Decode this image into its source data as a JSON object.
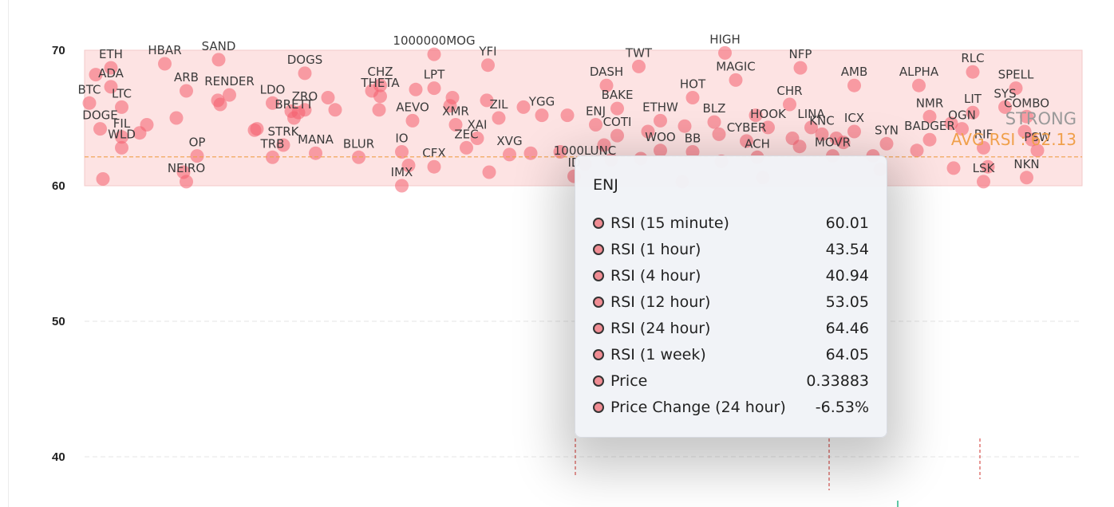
{
  "chart_data": {
    "type": "scatter",
    "ylim": [
      35,
      72
    ],
    "y_ticks": [
      40,
      50,
      60,
      70
    ],
    "grid": true,
    "zone": {
      "label": "STRONG",
      "from": 60,
      "to": 70
    },
    "average": {
      "label": "AVG RSI : 62.13",
      "value": 62.13
    },
    "labeled_points": [
      {
        "name": "ETH",
        "x": 2,
        "y": 68.7
      },
      {
        "name": "HBAR",
        "x": 7,
        "y": 69.0
      },
      {
        "name": "SAND",
        "x": 12,
        "y": 69.3
      },
      {
        "name": "ADA",
        "x": 2,
        "y": 67.3
      },
      {
        "name": "ARB",
        "x": 9,
        "y": 67.0
      },
      {
        "name": "RENDER",
        "x": 13,
        "y": 66.7
      },
      {
        "name": "DOGS",
        "x": 20,
        "y": 68.3
      },
      {
        "name": "1000000MOG",
        "x": 32,
        "y": 69.7
      },
      {
        "name": "YFI",
        "x": 37,
        "y": 68.9
      },
      {
        "name": "CHZ",
        "x": 27,
        "y": 67.4
      },
      {
        "name": "THETA",
        "x": 27,
        "y": 66.6
      },
      {
        "name": "LPT",
        "x": 32,
        "y": 67.2
      },
      {
        "name": "BTC",
        "x": 0,
        "y": 66.1
      },
      {
        "name": "LTC",
        "x": 3,
        "y": 65.8
      },
      {
        "name": "LDO",
        "x": 17,
        "y": 66.1
      },
      {
        "name": "ZRO",
        "x": 20,
        "y": 65.6
      },
      {
        "name": "BRETT",
        "x": 19,
        "y": 65.0
      },
      {
        "name": "AEVO",
        "x": 30,
        "y": 64.8
      },
      {
        "name": "XMR",
        "x": 34,
        "y": 64.5
      },
      {
        "name": "ZIL",
        "x": 38,
        "y": 65.0
      },
      {
        "name": "YGG",
        "x": 42,
        "y": 65.2
      },
      {
        "name": "DOGE",
        "x": 1,
        "y": 64.2
      },
      {
        "name": "FIL",
        "x": 3,
        "y": 63.6
      },
      {
        "name": "STRK",
        "x": 18,
        "y": 63.0
      },
      {
        "name": "XAI",
        "x": 36,
        "y": 63.5
      },
      {
        "name": "XVG",
        "x": 39,
        "y": 62.3
      },
      {
        "name": "WLD",
        "x": 3,
        "y": 62.8
      },
      {
        "name": "OP",
        "x": 10,
        "y": 62.2
      },
      {
        "name": "MANA",
        "x": 21,
        "y": 62.4
      },
      {
        "name": "TRB",
        "x": 17,
        "y": 62.1
      },
      {
        "name": "BLUR",
        "x": 25,
        "y": 62.1
      },
      {
        "name": "IO",
        "x": 29,
        "y": 62.5
      },
      {
        "name": "CFX",
        "x": 32,
        "y": 61.4
      },
      {
        "name": "ZEC",
        "x": 35,
        "y": 62.8
      },
      {
        "name": "NEIRO",
        "x": 9,
        "y": 60.3
      },
      {
        "name": "IMX",
        "x": 29,
        "y": 60.0
      },
      {
        "name": "TWT",
        "x": 51,
        "y": 68.8
      },
      {
        "name": "HIGH",
        "x": 59,
        "y": 69.8
      },
      {
        "name": "NFP",
        "x": 66,
        "y": 68.7
      },
      {
        "name": "DASH",
        "x": 48,
        "y": 67.4
      },
      {
        "name": "MAGIC",
        "x": 60,
        "y": 67.8
      },
      {
        "name": "HOT",
        "x": 56,
        "y": 66.5
      },
      {
        "name": "BAKE",
        "x": 49,
        "y": 65.7
      },
      {
        "name": "CHR",
        "x": 65,
        "y": 66.0
      },
      {
        "name": "AMB",
        "x": 71,
        "y": 67.4
      },
      {
        "name": "ALPHA",
        "x": 77,
        "y": 67.4
      },
      {
        "name": "RLC",
        "x": 82,
        "y": 68.4
      },
      {
        "name": "SPELL",
        "x": 86,
        "y": 67.2
      },
      {
        "name": "ENJ",
        "x": 47,
        "y": 64.5
      },
      {
        "name": "ETHW",
        "x": 53,
        "y": 64.8
      },
      {
        "name": "BLZ",
        "x": 58,
        "y": 64.7
      },
      {
        "name": "HOOK",
        "x": 63,
        "y": 64.3
      },
      {
        "name": "LINA",
        "x": 67,
        "y": 64.3
      },
      {
        "name": "ICX",
        "x": 71,
        "y": 64.0
      },
      {
        "name": "NMR",
        "x": 78,
        "y": 65.1
      },
      {
        "name": "LIT",
        "x": 82,
        "y": 65.4
      },
      {
        "name": "SYS",
        "x": 85,
        "y": 65.8
      },
      {
        "name": "COTI",
        "x": 49,
        "y": 63.7
      },
      {
        "name": "CYBER",
        "x": 61,
        "y": 63.3
      },
      {
        "name": "KNC",
        "x": 68,
        "y": 63.8
      },
      {
        "name": "SYN",
        "x": 74,
        "y": 63.1
      },
      {
        "name": "OGN",
        "x": 81,
        "y": 64.2
      },
      {
        "name": "COMBO",
        "x": 87,
        "y": 65.1
      },
      {
        "name": "BADGER",
        "x": 78,
        "y": 63.4
      },
      {
        "name": "RIF",
        "x": 83,
        "y": 62.8
      },
      {
        "name": "PSW",
        "x": 88,
        "y": 62.6
      },
      {
        "name": "1000LUNC",
        "x": 46,
        "y": 61.6
      },
      {
        "name": "WOO",
        "x": 53,
        "y": 62.6
      },
      {
        "name": "BB",
        "x": 56,
        "y": 62.5
      },
      {
        "name": "ACH",
        "x": 62,
        "y": 62.1
      },
      {
        "name": "MOVR",
        "x": 69,
        "y": 62.2
      },
      {
        "name": "ID",
        "x": 45,
        "y": 60.7
      },
      {
        "name": "LSK",
        "x": 83,
        "y": 60.3
      },
      {
        "name": "NKN",
        "x": 87,
        "y": 60.6
      }
    ],
    "other_point_values": [
      68.2,
      65.0,
      64.2,
      66.5,
      61.5,
      61.0,
      62.5,
      62.0,
      61.8,
      63.5,
      62.2,
      61.3,
      64.0,
      63.9,
      66.0,
      65.5,
      67.0,
      66.5,
      65.8,
      63.0,
      64.4,
      65.2,
      63.5,
      62.6,
      61.4,
      60.5,
      61.0,
      64.1,
      65.6,
      67.1,
      66.3,
      65.2,
      64.0,
      63.8,
      62.9,
      61.2,
      64.6,
      63.4,
      64.5,
      66.3,
      65.4,
      65.6,
      65.9,
      62.4,
      61.9,
      60.3,
      60.6,
      63.2
    ],
    "tooltip": {
      "title": "ENJ",
      "rows": [
        {
          "label": "RSI (15 minute)",
          "value": "60.01"
        },
        {
          "label": "RSI (1 hour)",
          "value": "43.54"
        },
        {
          "label": "RSI (4 hour)",
          "value": "40.94"
        },
        {
          "label": "RSI (12 hour)",
          "value": "53.05"
        },
        {
          "label": "RSI (24 hour)",
          "value": "64.46"
        },
        {
          "label": "RSI (1 week)",
          "value": "64.05"
        },
        {
          "label": "Price",
          "value": "0.33883"
        },
        {
          "label": "Price Change (24 hour)",
          "value": "-6.53%"
        }
      ]
    },
    "colors": {
      "point": "#f45e6e",
      "zone_fill": "#fde3e3",
      "zone_border": "#f3caca",
      "average_line": "#f0a04b",
      "grid": "#e6e6e6",
      "tooltip_dot": "#f08c93"
    }
  }
}
